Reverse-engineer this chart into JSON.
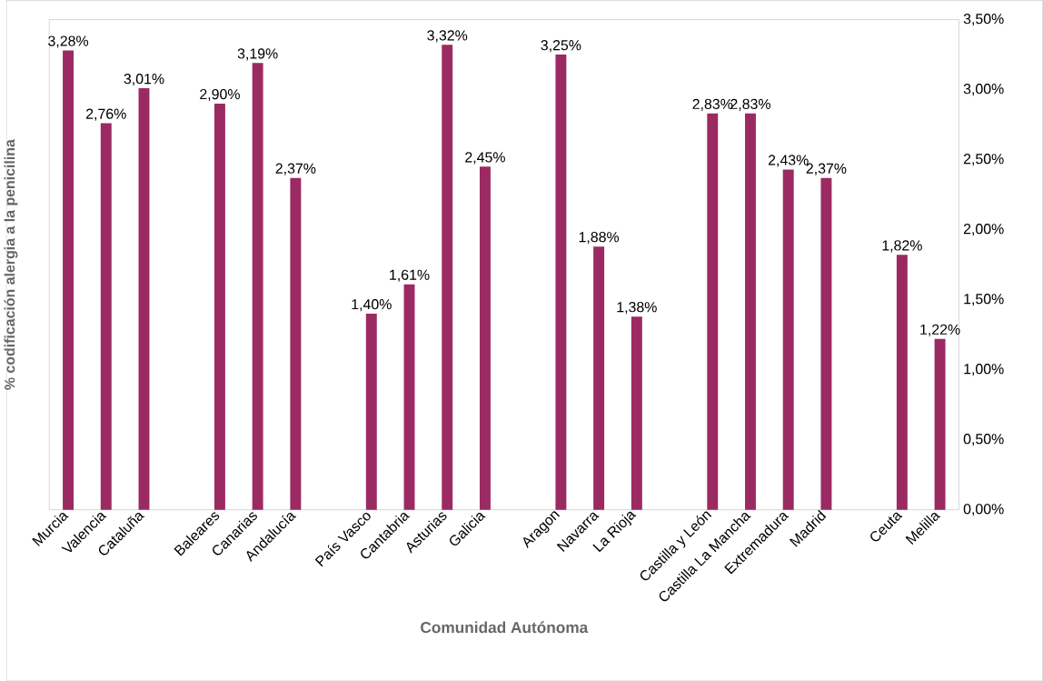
{
  "chart_data": {
    "type": "bar",
    "xlabel": "Comunidad Autónoma",
    "ylabel": "% codificación alergia a la penicilina",
    "categories": [
      "Murcia",
      "Valencia",
      "Cataluña",
      null,
      "Baleares",
      "Canarias",
      "Andalucía",
      null,
      "País Vasco",
      "Cantabria",
      "Asturias",
      "Galicia",
      null,
      "Aragon",
      "Navarra",
      "La Rioja",
      null,
      "Castilla y León",
      "Castilla La Mancha",
      "Extremadura",
      "Madrid",
      null,
      "Ceuta",
      "Melilla"
    ],
    "values": [
      3.28,
      2.76,
      3.01,
      null,
      2.9,
      3.19,
      2.37,
      null,
      1.4,
      1.61,
      3.32,
      2.45,
      null,
      3.25,
      1.88,
      1.38,
      null,
      2.83,
      2.83,
      2.43,
      2.37,
      null,
      1.82,
      1.22
    ],
    "value_labels": [
      "3,28%",
      "2,76%",
      "3,01%",
      null,
      "2,90%",
      "3,19%",
      "2,37%",
      null,
      "1,40%",
      "1,61%",
      "3,32%",
      "2,45%",
      null,
      "3,25%",
      "1,88%",
      "1,38%",
      null,
      "2,83%",
      "2,83%",
      "2,43%",
      "2,37%",
      null,
      "1,82%",
      "1,22%"
    ],
    "color": "#9b2a62",
    "ylim": [
      0,
      3.5
    ],
    "yticks": [
      {
        "value": 0,
        "label": "0,00%"
      },
      {
        "value": 0.5,
        "label": "0,50%"
      },
      {
        "value": 1,
        "label": "1,00%"
      },
      {
        "value": 1.5,
        "label": "1,50%"
      },
      {
        "value": 2,
        "label": "2,00%"
      },
      {
        "value": 2.5,
        "label": "2,50%"
      },
      {
        "value": 3,
        "label": "3,00%"
      },
      {
        "value": 3.5,
        "label": "3,50%"
      }
    ]
  }
}
